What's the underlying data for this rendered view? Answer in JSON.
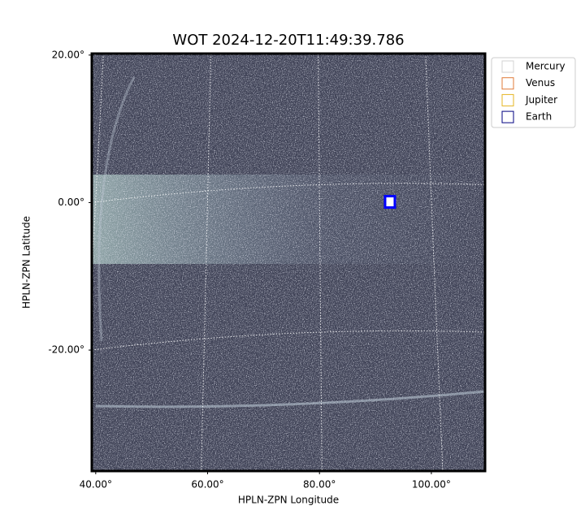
{
  "chart_data": {
    "type": "image",
    "title": "WOT 2024-12-20T11:49:39.786",
    "xlabel": "HPLN-ZPN Longitude",
    "ylabel": "HPLN-ZPN Latitude",
    "xlim": [
      39.3,
      109.6
    ],
    "ylim": [
      -36.4,
      20.2
    ],
    "xticks": [
      {
        "value": 40,
        "label": "40.00°"
      },
      {
        "value": 60,
        "label": "60.00°"
      },
      {
        "value": 80,
        "label": "80.00°"
      },
      {
        "value": 100,
        "label": "100.00°"
      }
    ],
    "yticks": [
      {
        "value": 20,
        "label": "20.00°"
      },
      {
        "value": 0,
        "label": "0.00°"
      },
      {
        "value": -20,
        "label": "-20.00°"
      }
    ],
    "grid": true,
    "legend": "upper right outside",
    "series": [
      {
        "name": "Mercury",
        "color": "#d3d3d3",
        "x": [],
        "y": []
      },
      {
        "name": "Venus",
        "color": "#e07b39",
        "x": [],
        "y": []
      },
      {
        "name": "Jupiter",
        "color": "#e6b422",
        "x": [],
        "y": []
      },
      {
        "name": "Earth",
        "color": "#000080",
        "x": [
          92.6
        ],
        "y": [
          0.1
        ]
      }
    ]
  }
}
